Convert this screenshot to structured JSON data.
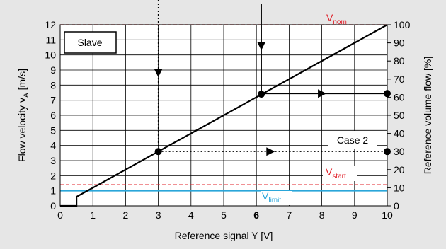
{
  "chart_data": {
    "type": "line",
    "x": [
      0,
      0.5,
      0.5,
      10
    ],
    "y": [
      0,
      0,
      0.6,
      12
    ],
    "xlim": [
      0,
      10
    ],
    "ylim": [
      0,
      12
    ],
    "y2lim": [
      0,
      100
    ],
    "xticks": [
      0,
      1,
      2,
      3,
      4,
      5,
      6,
      7,
      8,
      9,
      10
    ],
    "yticks": [
      0,
      1,
      2,
      3,
      4,
      5,
      6,
      7,
      8,
      9,
      10,
      11,
      12
    ],
    "y2ticks": [
      0,
      10,
      20,
      30,
      40,
      50,
      60,
      70,
      80,
      90,
      100
    ],
    "xlabel": "Reference signal Y [V]",
    "ylabel_main": "Flow velocity  v",
    "ylabel_sub": "A",
    "ylabel_unit": "  [m/s]",
    "y2label": "Reference volume flow  [%]",
    "grid": true,
    "reference_lines": [
      {
        "name": "V",
        "sub": "nom",
        "value": 12,
        "color": "#e0202a",
        "style": "dashed"
      },
      {
        "name": "V",
        "sub": "start",
        "value": 1.4,
        "color": "#e0202a",
        "style": "dashed"
      },
      {
        "name": "V",
        "sub": "limit",
        "value": 1.0,
        "color": "#2aa6d9",
        "style": "solid"
      }
    ],
    "annotations": [
      {
        "label": "Slave"
      },
      {
        "label": "Case 2"
      }
    ],
    "examples": [
      {
        "x": 3,
        "y": 3.6,
        "flow_percent": 30,
        "guide": "dotted"
      },
      {
        "x": 6.15,
        "y": 7.4,
        "flow_percent": 62,
        "guide": "solid"
      }
    ],
    "bold_ticks": [
      6
    ]
  }
}
